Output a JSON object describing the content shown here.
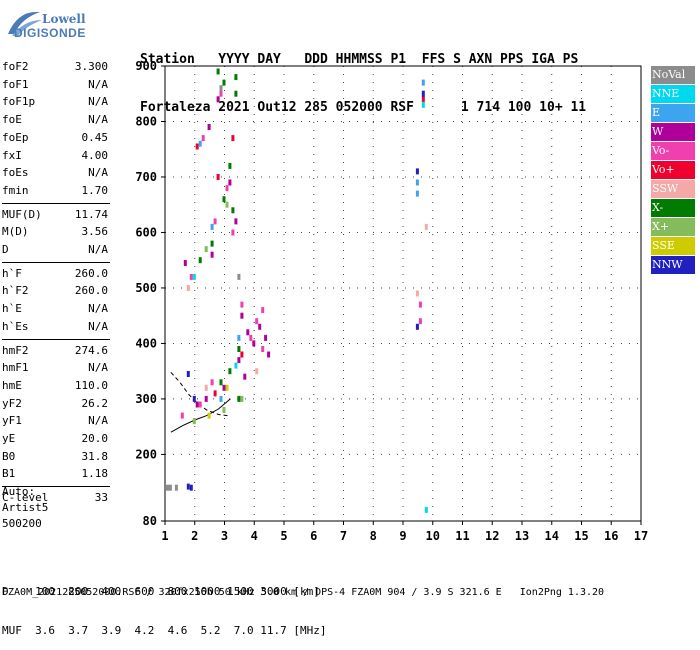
{
  "logo": {
    "line1": "Lowell",
    "line2": "DIGISONDE"
  },
  "header": {
    "line1": "Station   YYYY DAY   DDD HHMMSS P1  FFS S AXN PPS IGA PS",
    "line2": "Fortaleza 2021 Out12 285 052000 RSF      1 714 100 10+ 11"
  },
  "params": {
    "group1": [
      {
        "k": "foF2",
        "v": "3.300"
      },
      {
        "k": "foF1",
        "v": "N/A"
      },
      {
        "k": "foF1p",
        "v": "N/A"
      },
      {
        "k": "foE",
        "v": "N/A"
      },
      {
        "k": "foEp",
        "v": "0.45"
      },
      {
        "k": "fxI",
        "v": "4.00"
      },
      {
        "k": "foEs",
        "v": "N/A"
      },
      {
        "k": "fmin",
        "v": "1.70"
      }
    ],
    "group2": [
      {
        "k": "MUF(D)",
        "v": "11.74"
      },
      {
        "k": "M(D)",
        "v": "3.56"
      },
      {
        "k": "D",
        "v": "N/A"
      }
    ],
    "group3": [
      {
        "k": "h`F",
        "v": "260.0"
      },
      {
        "k": "h`F2",
        "v": "260.0"
      },
      {
        "k": "h`E",
        "v": "N/A"
      },
      {
        "k": "h`Es",
        "v": "N/A"
      }
    ],
    "group4": [
      {
        "k": "hmF2",
        "v": "274.6"
      },
      {
        "k": "hmF1",
        "v": "N/A"
      },
      {
        "k": "hmE",
        "v": "110.0"
      },
      {
        "k": "yF2",
        "v": "26.2"
      },
      {
        "k": "yF1",
        "v": "N/A"
      },
      {
        "k": "yE",
        "v": "20.0"
      },
      {
        "k": "B0",
        "v": "31.8"
      },
      {
        "k": "B1",
        "v": "1.18"
      }
    ],
    "group5": [
      {
        "k": "C-level",
        "v": "33"
      }
    ]
  },
  "auto": {
    "line1": "Auto:",
    "line2": "Artist5",
    "line3": "500200"
  },
  "legend": [
    {
      "label": "NoVal",
      "color": "#8c8c8c"
    },
    {
      "label": "NNE",
      "color": "#00d8f0"
    },
    {
      "label": "E",
      "color": "#3da4f0"
    },
    {
      "label": "W",
      "color": "#b0009c"
    },
    {
      "label": "Vo-",
      "color": "#f040b0"
    },
    {
      "label": "Vo+",
      "color": "#f0002c"
    },
    {
      "label": "SSW",
      "color": "#f4a8a8"
    },
    {
      "label": "X-",
      "color": "#007a00"
    },
    {
      "label": "X+",
      "color": "#84bc5c"
    },
    {
      "label": "SSE",
      "color": "#cccc00"
    },
    {
      "label": "NNW",
      "color": "#2020c0"
    }
  ],
  "footer": {
    "line1": "D    100  200  400  600  800 1000 1500 3000 [km]",
    "line2": "MUF  3.6  3.7  3.9  4.2  4.6  5.2  7.0 11.7 [MHz]",
    "line3": "FZA0M_2021285052000.RSF / 320fx256h 50 kHz 5.0 km / DPS-4 FZA0M 904 / 3.9 S 321.6 E   Ion2Png 1.3.20"
  },
  "chart_data": {
    "type": "scatter",
    "title": "",
    "xlabel": "",
    "ylabel": "",
    "xlim": [
      1,
      17
    ],
    "ylim": [
      80,
      900
    ],
    "xticks": [
      1,
      2,
      3,
      4,
      5,
      6,
      7,
      8,
      9,
      10,
      11,
      12,
      13,
      14,
      15,
      16,
      17
    ],
    "yticks": [
      80,
      200,
      300,
      400,
      500,
      600,
      700,
      800,
      900
    ],
    "grid": true,
    "series": [
      {
        "name": "X-",
        "color": "#007a00",
        "points": [
          [
            2.8,
            890
          ],
          [
            3.0,
            870
          ],
          [
            3.4,
            880
          ],
          [
            3.4,
            850
          ],
          [
            3.2,
            720
          ],
          [
            3.0,
            660
          ],
          [
            3.3,
            640
          ],
          [
            2.2,
            550
          ],
          [
            2.6,
            580
          ],
          [
            2.9,
            330
          ],
          [
            3.2,
            350
          ],
          [
            3.5,
            390
          ],
          [
            3.5,
            300
          ]
        ]
      },
      {
        "name": "W",
        "color": "#b0009c",
        "points": [
          [
            2.5,
            790
          ],
          [
            2.8,
            840
          ],
          [
            3.2,
            690
          ],
          [
            3.4,
            620
          ],
          [
            1.7,
            545
          ],
          [
            2.6,
            560
          ],
          [
            3.6,
            450
          ],
          [
            3.8,
            420
          ],
          [
            4.0,
            400
          ],
          [
            4.2,
            430
          ],
          [
            4.4,
            410
          ],
          [
            4.5,
            380
          ],
          [
            3.5,
            370
          ],
          [
            3.7,
            340
          ],
          [
            3.0,
            320
          ],
          [
            2.4,
            300
          ],
          [
            2.1,
            290
          ]
        ]
      },
      {
        "name": "Vo-",
        "color": "#f040b0",
        "points": [
          [
            2.9,
            850
          ],
          [
            2.3,
            770
          ],
          [
            3.1,
            680
          ],
          [
            2.7,
            620
          ],
          [
            1.9,
            520
          ],
          [
            3.3,
            600
          ],
          [
            3.6,
            470
          ],
          [
            4.1,
            440
          ],
          [
            4.3,
            460
          ],
          [
            3.9,
            410
          ],
          [
            4.3,
            390
          ],
          [
            2.6,
            330
          ],
          [
            2.2,
            290
          ],
          [
            1.6,
            270
          ],
          [
            9.6,
            470
          ],
          [
            9.6,
            440
          ]
        ]
      },
      {
        "name": "Vo+",
        "color": "#f0002c",
        "points": [
          [
            2.1,
            755
          ],
          [
            3.3,
            770
          ],
          [
            2.8,
            700
          ],
          [
            3.6,
            380
          ],
          [
            2.7,
            310
          ],
          [
            9.7,
            840
          ]
        ]
      },
      {
        "name": "E",
        "color": "#3da4f0",
        "points": [
          [
            2.2,
            760
          ],
          [
            2.6,
            610
          ],
          [
            3.5,
            410
          ],
          [
            2.9,
            300
          ],
          [
            9.5,
            690
          ],
          [
            9.5,
            670
          ],
          [
            9.7,
            870
          ]
        ]
      },
      {
        "name": "NNE",
        "color": "#00d8f0",
        "points": [
          [
            2.0,
            520
          ],
          [
            3.4,
            360
          ],
          [
            9.7,
            830
          ],
          [
            9.8,
            100
          ]
        ]
      },
      {
        "name": "SSW",
        "color": "#f4a8a8",
        "points": [
          [
            1.8,
            500
          ],
          [
            2.4,
            320
          ],
          [
            4.1,
            350
          ],
          [
            9.5,
            490
          ],
          [
            9.8,
            610
          ]
        ]
      },
      {
        "name": "X+",
        "color": "#84bc5c",
        "points": [
          [
            2.4,
            570
          ],
          [
            3.1,
            650
          ],
          [
            3.6,
            300
          ],
          [
            2.0,
            260
          ],
          [
            3.0,
            280
          ]
        ]
      },
      {
        "name": "SSE",
        "color": "#cccc00",
        "points": [
          [
            3.1,
            320
          ],
          [
            2.5,
            270
          ]
        ]
      },
      {
        "name": "NNW",
        "color": "#2020c0",
        "points": [
          [
            1.8,
            345
          ],
          [
            2.0,
            300
          ],
          [
            1.9,
            140
          ],
          [
            1.8,
            142
          ],
          [
            9.5,
            430
          ],
          [
            9.5,
            710
          ],
          [
            9.7,
            850
          ]
        ]
      },
      {
        "name": "NoVal",
        "color": "#8c8c8c",
        "points": [
          [
            1.1,
            140
          ],
          [
            1.2,
            140
          ],
          [
            1.4,
            140
          ],
          [
            2.9,
            860
          ],
          [
            3.5,
            520
          ]
        ]
      }
    ],
    "trace": {
      "lower": [
        [
          1.2,
          240
        ],
        [
          1.6,
          252
        ],
        [
          2.0,
          262
        ],
        [
          2.4,
          270
        ],
        [
          2.8,
          282
        ],
        [
          3.2,
          300
        ]
      ],
      "upper": [
        [
          1.2,
          348
        ],
        [
          1.5,
          330
        ],
        [
          1.8,
          308
        ],
        [
          2.1,
          292
        ],
        [
          2.4,
          280
        ],
        [
          2.8,
          272
        ],
        [
          3.1,
          270
        ]
      ]
    }
  }
}
